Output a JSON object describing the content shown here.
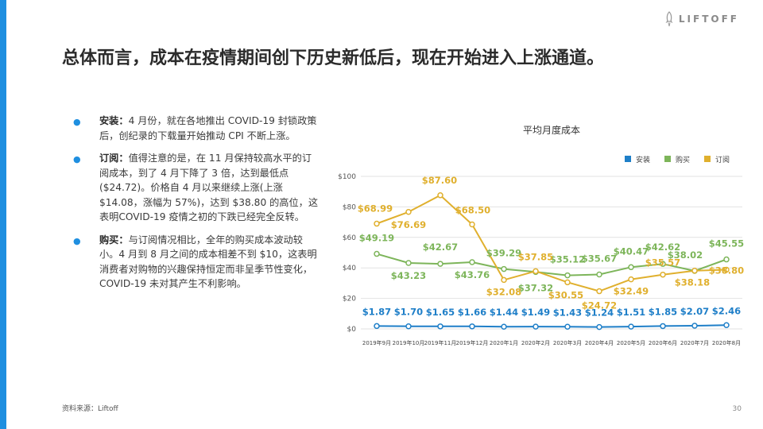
{
  "header": {
    "logo_text": "LIFTOFF",
    "title": "总体而言，成本在疫情期间创下历史新低后，现在开始进入上涨通道。"
  },
  "bullets": [
    {
      "label": "安装：",
      "text": "4 月份，就在各地推出 COVID-19 封锁政策后，创纪录的下载量开始推动 CPI 不断上涨。"
    },
    {
      "label": "订阅：",
      "text": "值得注意的是，在 11 月保持较高水平的订阅成本，到了 4 月下降了 3 倍，达到最低点($24.72)。价格自 4 月以来继续上涨(上涨 $14.08，涨幅为 57%)，达到 $38.80 的高位，这表明COVID-19 疫情之初的下跌已经完全反转。"
    },
    {
      "label": "购买：",
      "text": "与订阅情况相比，全年的购买成本波动较小。4 月到 8 月之间的成本相差不到 $10，这表明消费者对购物的兴趣保持恒定而非呈季节性变化，COVID-19 未对其产生不利影响。"
    }
  ],
  "footer": {
    "source": "资料来源：Liftoff",
    "page_number": "30"
  },
  "colors": {
    "accent": "#1f8fe0",
    "install": "#1f7fc8",
    "purchase": "#7db55a",
    "subscribe": "#e0b02e"
  },
  "chart_data": {
    "type": "line",
    "title": "平均月度成本",
    "categories": [
      "2019年9月",
      "2019年10月",
      "2019年11月",
      "2019年12月",
      "2020年1月",
      "2020年2月",
      "2020年3月",
      "2020年4月",
      "2020年5月",
      "2020年6月",
      "2020年7月",
      "2020年8月"
    ],
    "ylim": [
      0,
      100
    ],
    "yticks": [
      0,
      20,
      40,
      60,
      80,
      100
    ],
    "ytick_labels": [
      "$0",
      "$20",
      "$40",
      "$60",
      "$80",
      "$100"
    ],
    "legend_position": "top-right",
    "series": [
      {
        "key": "install",
        "name": "安装",
        "color": "#1f7fc8",
        "values": [
          1.87,
          1.7,
          1.65,
          1.66,
          1.44,
          1.49,
          1.43,
          1.24,
          1.51,
          1.85,
          2.07,
          2.46
        ],
        "labels": [
          "$1.87",
          "$1.70",
          "$1.65",
          "$1.66",
          "$1.44",
          "$1.49",
          "$1.43",
          "$1.24",
          "$1.51",
          "$1.85",
          "$2.07",
          "$2.46"
        ]
      },
      {
        "key": "purchase",
        "name": "购买",
        "color": "#7db55a",
        "values": [
          49.19,
          43.23,
          42.67,
          43.76,
          39.29,
          37.32,
          35.12,
          35.67,
          40.47,
          42.62,
          38.02,
          45.55
        ],
        "labels": [
          "$49.19",
          "$43.23",
          "$42.67",
          "$43.76",
          "$39.29",
          "$37.32",
          "$35.12",
          "$35.67",
          "$40.47",
          "$42.62",
          "$38.02",
          "$45.55"
        ]
      },
      {
        "key": "subscribe",
        "name": "订阅",
        "color": "#e0b02e",
        "values": [
          68.99,
          76.69,
          87.6,
          68.5,
          32.08,
          37.85,
          30.55,
          24.72,
          32.49,
          35.57,
          38.18,
          38.8
        ],
        "labels": [
          "$68.99",
          "$76.69",
          "$87.60",
          "$68.50",
          "$32.08",
          "$37.85",
          "$30.55",
          "$24.72",
          "$32.49",
          "$35.57",
          "$38.18",
          "$38.80"
        ]
      }
    ]
  }
}
